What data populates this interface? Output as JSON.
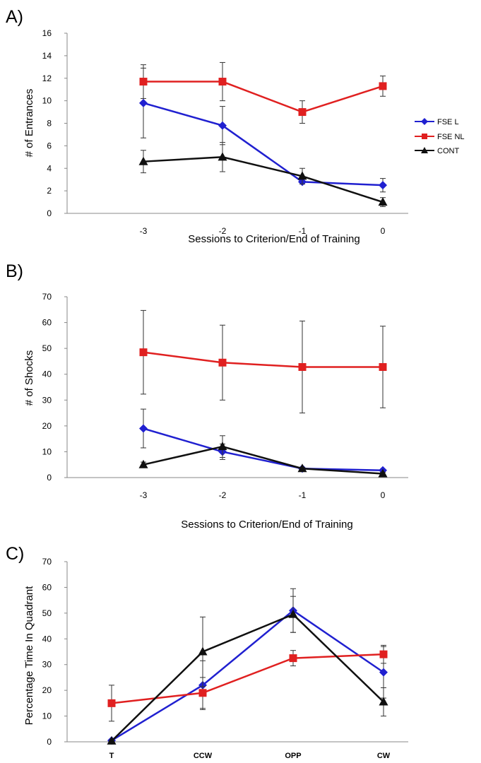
{
  "colors": {
    "fse_l": "#2020d0",
    "fse_nl": "#e02020",
    "cont": "#101010"
  },
  "legend": {
    "entries": [
      {
        "name": "FSE L",
        "color": "#2020d0",
        "marker": "diamond"
      },
      {
        "name": "FSE NL",
        "color": "#e02020",
        "marker": "square"
      },
      {
        "name": "CONT",
        "color": "#101010",
        "marker": "triangle"
      }
    ]
  },
  "chart_data": [
    {
      "panel": "A)",
      "type": "line",
      "xlabel": "Sessions to Criterion/End of Training",
      "ylabel": "# of Entrances",
      "categories": [
        "-3",
        "-2",
        "-1",
        "0"
      ],
      "ylim": [
        0,
        16
      ],
      "yticks": [
        "0",
        "2",
        "4",
        "6",
        "8",
        "10",
        "12",
        "14",
        "16"
      ],
      "series": [
        {
          "name": "FSE L",
          "color": "#2020d0",
          "marker": "diamond",
          "values": [
            9.8,
            7.8,
            2.8,
            2.5
          ],
          "err": [
            3.1,
            1.7,
            0,
            0.6
          ]
        },
        {
          "name": "FSE NL",
          "color": "#e02020",
          "marker": "square",
          "values": [
            11.7,
            11.7,
            9.0,
            11.3
          ],
          "err": [
            1.5,
            1.7,
            1.0,
            0.9
          ]
        },
        {
          "name": "CONT",
          "color": "#101010",
          "marker": "triangle",
          "values": [
            4.6,
            5.0,
            3.3,
            1.0
          ],
          "err": [
            1.0,
            1.3,
            0.7,
            0.4
          ]
        }
      ]
    },
    {
      "panel": "B)",
      "type": "line",
      "xlabel": "Sessions to Criterion/End of Training",
      "ylabel": "# of Shocks",
      "categories": [
        "-3",
        "-2",
        "-1",
        "0"
      ],
      "ylim": [
        0,
        70
      ],
      "yticks": [
        "0",
        "10",
        "20",
        "30",
        "40",
        "50",
        "60",
        "70"
      ],
      "series": [
        {
          "name": "FSE L",
          "color": "#2020d0",
          "marker": "diamond",
          "values": [
            19,
            10,
            3.5,
            2.8
          ],
          "err": [
            7.5,
            3,
            0.5,
            0.5
          ]
        },
        {
          "name": "FSE NL",
          "color": "#e02020",
          "marker": "square",
          "values": [
            48.5,
            44.5,
            42.8,
            42.8
          ],
          "err": [
            16.2,
            14.5,
            17.8,
            15.8
          ]
        },
        {
          "name": "CONT",
          "color": "#101010",
          "marker": "triangle",
          "values": [
            5,
            12,
            3.5,
            1.5
          ],
          "err": [
            1,
            4.2,
            0.5,
            0.5
          ]
        }
      ]
    },
    {
      "panel": "C)",
      "type": "line",
      "xlabel": "",
      "ylabel": "Percentage Time In Quadrant",
      "categories": [
        "T",
        "CCW",
        "OPP",
        "CW"
      ],
      "ylim": [
        0,
        70
      ],
      "yticks": [
        "0",
        "10",
        "20",
        "30",
        "40",
        "50",
        "60",
        "70"
      ],
      "series": [
        {
          "name": "FSE L",
          "color": "#2020d0",
          "marker": "diamond",
          "values": [
            0.5,
            22,
            51,
            27
          ],
          "err": [
            0.5,
            9.5,
            8.5,
            10
          ]
        },
        {
          "name": "FSE NL",
          "color": "#e02020",
          "marker": "square",
          "values": [
            15,
            19,
            32.5,
            34
          ],
          "err": [
            7,
            6,
            3,
            3.5
          ]
        },
        {
          "name": "CONT",
          "color": "#101010",
          "marker": "triangle",
          "values": [
            0.3,
            35,
            49.5,
            15.5
          ],
          "err": [
            0.3,
            13.5,
            7,
            5.5
          ]
        }
      ]
    }
  ]
}
